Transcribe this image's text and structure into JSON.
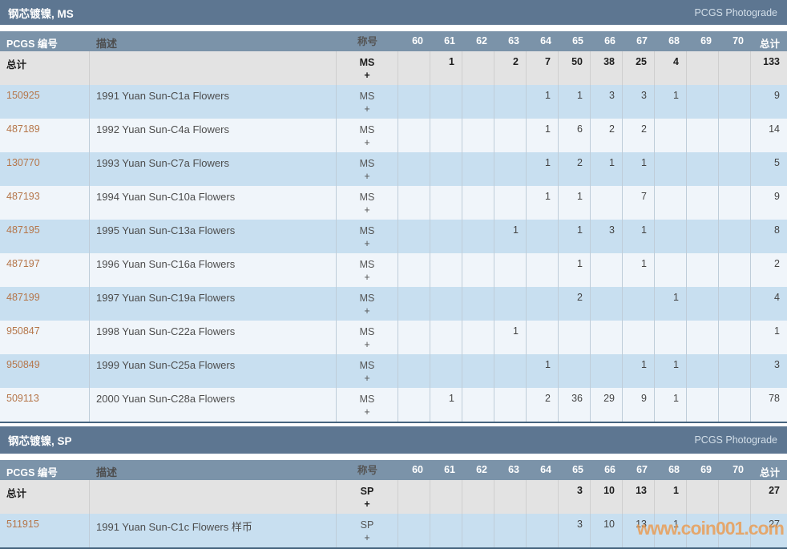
{
  "page": {
    "photograde_label": "PCGS Photograde",
    "watermark": "www.coin001.com"
  },
  "table": {
    "headers": {
      "pcgs_number": "PCGS 编号",
      "description": "描述",
      "designation": "称号",
      "total": "总计"
    },
    "grades": [
      "60",
      "61",
      "62",
      "63",
      "64",
      "65",
      "66",
      "67",
      "68",
      "69",
      "70"
    ],
    "totals_label": "总计"
  },
  "colors": {
    "section_header": "#5d7691",
    "column_header": "#7b93a9",
    "row_blue": "#c8dff0",
    "row_light": "#f0f5fa",
    "totals_row_bg": "#e3e3e3",
    "link": "#b5764a",
    "table_bottom_border": "#46647e",
    "watermark": "#eb9a4d"
  },
  "sections": [
    {
      "title": "钢芯镀镍, MS",
      "designation": "MS",
      "plus": "+",
      "totals": {
        "values": [
          "",
          "1",
          "",
          "2",
          "7",
          "50",
          "38",
          "25",
          "4",
          "",
          ""
        ],
        "total": "133"
      },
      "rows": [
        {
          "pcgs": "150925",
          "desc": "1991 Yuan Sun-C1a Flowers",
          "values": [
            "",
            "",
            "",
            "",
            "1",
            "1",
            "3",
            "3",
            "1",
            "",
            ""
          ],
          "total": "9"
        },
        {
          "pcgs": "487189",
          "desc": "1992 Yuan Sun-C4a Flowers",
          "values": [
            "",
            "",
            "",
            "",
            "1",
            "6",
            "2",
            "2",
            "",
            "",
            ""
          ],
          "total": "14"
        },
        {
          "pcgs": "130770",
          "desc": "1993 Yuan Sun-C7a Flowers",
          "values": [
            "",
            "",
            "",
            "",
            "1",
            "2",
            "1",
            "1",
            "",
            "",
            ""
          ],
          "total": "5"
        },
        {
          "pcgs": "487193",
          "desc": "1994 Yuan Sun-C10a Flowers",
          "values": [
            "",
            "",
            "",
            "",
            "1",
            "1",
            "",
            "7",
            "",
            "",
            ""
          ],
          "total": "9"
        },
        {
          "pcgs": "487195",
          "desc": "1995 Yuan Sun-C13a Flowers",
          "values": [
            "",
            "",
            "",
            "1",
            "",
            "1",
            "3",
            "1",
            "",
            "",
            ""
          ],
          "total": "8"
        },
        {
          "pcgs": "487197",
          "desc": "1996 Yuan Sun-C16a Flowers",
          "values": [
            "",
            "",
            "",
            "",
            "",
            "1",
            "",
            "1",
            "",
            "",
            ""
          ],
          "total": "2"
        },
        {
          "pcgs": "487199",
          "desc": "1997 Yuan Sun-C19a Flowers",
          "values": [
            "",
            "",
            "",
            "",
            "",
            "2",
            "",
            "",
            "1",
            "",
            ""
          ],
          "total": "4"
        },
        {
          "pcgs": "950847",
          "desc": "1998 Yuan Sun-C22a Flowers",
          "values": [
            "",
            "",
            "",
            "1",
            "",
            "",
            "",
            "",
            "",
            "",
            ""
          ],
          "total": "1"
        },
        {
          "pcgs": "950849",
          "desc": "1999 Yuan Sun-C25a Flowers",
          "values": [
            "",
            "",
            "",
            "",
            "1",
            "",
            "",
            "1",
            "1",
            "",
            ""
          ],
          "total": "3"
        },
        {
          "pcgs": "509113",
          "desc": "2000 Yuan Sun-C28a Flowers",
          "values": [
            "",
            "1",
            "",
            "",
            "2",
            "36",
            "29",
            "9",
            "1",
            "",
            ""
          ],
          "total": "78"
        }
      ]
    },
    {
      "title": "钢芯镀镍, SP",
      "designation": "SP",
      "plus": "+",
      "totals": {
        "values": [
          "",
          "",
          "",
          "",
          "",
          "3",
          "10",
          "13",
          "1",
          "",
          ""
        ],
        "total": "27"
      },
      "rows": [
        {
          "pcgs": "511915",
          "desc": "1991 Yuan Sun-C1c Flowers 样币",
          "values": [
            "",
            "",
            "",
            "",
            "",
            "3",
            "10",
            "13",
            "1",
            "",
            ""
          ],
          "total": "27"
        }
      ]
    }
  ]
}
